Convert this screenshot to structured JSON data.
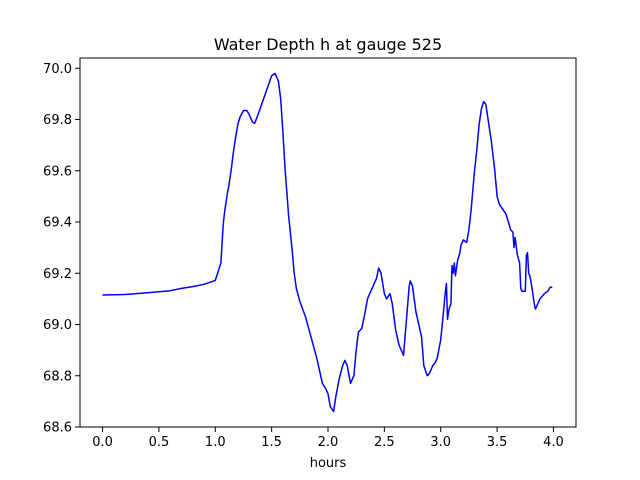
{
  "chart_data": {
    "type": "line",
    "title": "Water Depth h at gauge 525",
    "xlabel": "hours",
    "ylabel": "",
    "xlim": [
      -0.2,
      4.2
    ],
    "ylim": [
      68.6,
      70.04
    ],
    "xticks": [
      0.0,
      0.5,
      1.0,
      1.5,
      2.0,
      2.5,
      3.0,
      3.5,
      4.0
    ],
    "xtick_labels": [
      "0.0",
      "0.5",
      "1.0",
      "1.5",
      "2.0",
      "2.5",
      "3.0",
      "3.5",
      "4.0"
    ],
    "yticks": [
      68.6,
      68.8,
      69.0,
      69.2,
      69.4,
      69.6,
      69.8,
      70.0
    ],
    "ytick_labels": [
      "68.6",
      "68.8",
      "69.0",
      "69.2",
      "69.4",
      "69.6",
      "69.8",
      "70.0"
    ],
    "grid": false,
    "line_color": "#0000ff",
    "series": [
      {
        "x": [
          0.0,
          0.2,
          0.4,
          0.6,
          0.7,
          0.8,
          0.9,
          1.0,
          1.05,
          1.07,
          1.08,
          1.09,
          1.11,
          1.12,
          1.13,
          1.14,
          1.16,
          1.18,
          1.2,
          1.22,
          1.25,
          1.28,
          1.3,
          1.33,
          1.35,
          1.38,
          1.42,
          1.46,
          1.5,
          1.53,
          1.56,
          1.58,
          1.6,
          1.62,
          1.65,
          1.68,
          1.7,
          1.72,
          1.75,
          1.8,
          1.85,
          1.9,
          1.95,
          1.98,
          2.0,
          2.02,
          2.05,
          2.07,
          2.1,
          2.13,
          2.15,
          2.17,
          2.2,
          2.23,
          2.25,
          2.27,
          2.3,
          2.33,
          2.35,
          2.38,
          2.4,
          2.43,
          2.45,
          2.47,
          2.5,
          2.52,
          2.55,
          2.57,
          2.6,
          2.63,
          2.67,
          2.7,
          2.72,
          2.73,
          2.75,
          2.78,
          2.8,
          2.83,
          2.85,
          2.88,
          2.9,
          2.93,
          2.95,
          2.97,
          3.0,
          3.02,
          3.04,
          3.05,
          3.06,
          3.07,
          3.08,
          3.09,
          3.1,
          3.11,
          3.12,
          3.13,
          3.14,
          3.15,
          3.17,
          3.18,
          3.2,
          3.23,
          3.25,
          3.27,
          3.28,
          3.3,
          3.32,
          3.34,
          3.36,
          3.38,
          3.4,
          3.42,
          3.45,
          3.48,
          3.5,
          3.52,
          3.55,
          3.58,
          3.6,
          3.62,
          3.64,
          3.65,
          3.66,
          3.68,
          3.7,
          3.71,
          3.72,
          3.75,
          3.76,
          3.77,
          3.78,
          3.79,
          3.8,
          3.82,
          3.83,
          3.84,
          3.86,
          3.88,
          3.9,
          3.92,
          3.95,
          3.97,
          3.99
        ],
        "y": [
          69.115,
          69.117,
          69.124,
          69.132,
          69.141,
          69.148,
          69.157,
          69.172,
          69.24,
          69.39,
          69.43,
          69.46,
          69.52,
          69.54,
          69.57,
          69.6,
          69.67,
          69.73,
          69.78,
          69.81,
          69.835,
          69.835,
          69.82,
          69.79,
          69.785,
          69.82,
          69.87,
          69.92,
          69.97,
          69.98,
          69.95,
          69.88,
          69.75,
          69.6,
          69.43,
          69.3,
          69.2,
          69.14,
          69.09,
          69.03,
          68.95,
          68.87,
          68.77,
          68.75,
          68.73,
          68.68,
          68.66,
          68.72,
          68.79,
          68.84,
          68.86,
          68.84,
          68.77,
          68.8,
          68.9,
          68.97,
          68.985,
          69.05,
          69.1,
          69.13,
          69.15,
          69.18,
          69.22,
          69.2,
          69.12,
          69.1,
          69.12,
          69.08,
          68.98,
          68.92,
          68.88,
          69.04,
          69.15,
          69.17,
          69.15,
          69.05,
          69.01,
          68.95,
          68.84,
          68.8,
          68.81,
          68.84,
          68.85,
          68.87,
          68.94,
          69.03,
          69.12,
          69.16,
          69.02,
          69.05,
          69.07,
          69.08,
          69.23,
          69.2,
          69.24,
          69.19,
          69.22,
          69.25,
          69.28,
          69.31,
          69.33,
          69.32,
          69.37,
          69.45,
          69.5,
          69.6,
          69.68,
          69.78,
          69.84,
          69.87,
          69.86,
          69.8,
          69.71,
          69.6,
          69.5,
          69.47,
          69.45,
          69.43,
          69.4,
          69.37,
          69.36,
          69.3,
          69.34,
          69.27,
          69.24,
          69.14,
          69.13,
          69.13,
          69.27,
          69.28,
          69.2,
          69.19,
          69.17,
          69.11,
          69.08,
          69.06,
          69.08,
          69.1,
          69.11,
          69.12,
          69.13,
          69.145,
          69.145
        ]
      }
    ]
  }
}
